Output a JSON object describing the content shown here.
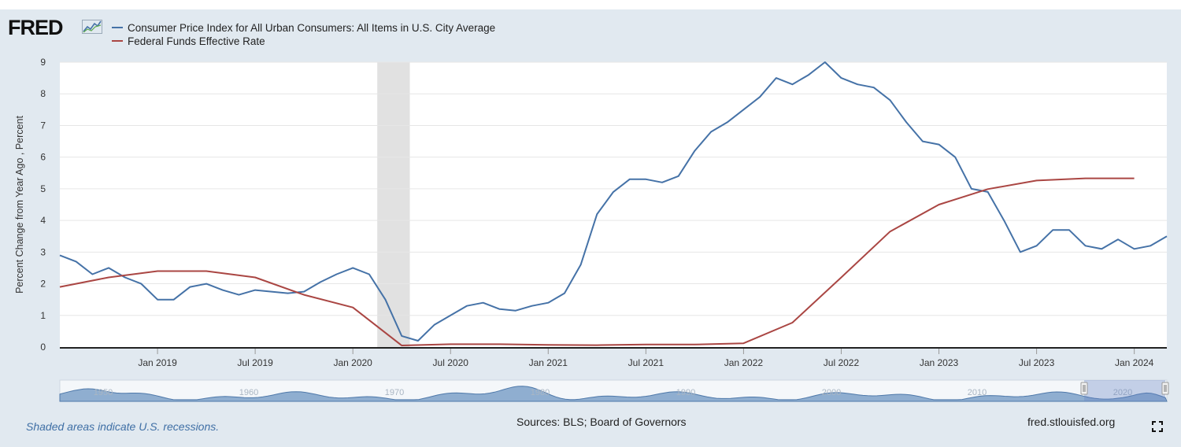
{
  "brand": {
    "logo_text": "FRED"
  },
  "legend": [
    {
      "label": "Consumer Price Index for All Urban Consumers: All Items in U.S. City Average",
      "color": "#4572a7"
    },
    {
      "label": "Federal Funds Effective Rate",
      "color": "#aa4643"
    }
  ],
  "footer": {
    "recession_note": "Shaded areas indicate U.S. recessions.",
    "sources": "Sources: BLS; Board of Governors",
    "site": "fred.stlouisfed.org"
  },
  "chart_data": {
    "type": "line",
    "title": "",
    "xlabel": "",
    "ylabel": "Percent Change from Year Ago , Percent",
    "x_range": [
      "2018-07",
      "2024-03"
    ],
    "ylim": [
      0,
      9
    ],
    "y_ticks": [
      0,
      1,
      2,
      3,
      4,
      5,
      6,
      7,
      8,
      9
    ],
    "x_ticks": [
      {
        "label": "Jan 2019",
        "month": 6
      },
      {
        "label": "Jul 2019",
        "month": 12
      },
      {
        "label": "Jan 2020",
        "month": 18
      },
      {
        "label": "Jul 2020",
        "month": 24
      },
      {
        "label": "Jan 2021",
        "month": 30
      },
      {
        "label": "Jul 2021",
        "month": 36
      },
      {
        "label": "Jan 2022",
        "month": 42
      },
      {
        "label": "Jul 2022",
        "month": 48
      },
      {
        "label": "Jan 2023",
        "month": 54
      },
      {
        "label": "Jul 2023",
        "month": 60
      },
      {
        "label": "Jan 2024",
        "month": 66
      }
    ],
    "recession": {
      "start_month": 19.5,
      "end_month": 21.5
    },
    "navigator_labels": [
      "1950",
      "1960",
      "1970",
      "1980",
      "1990",
      "2000",
      "2010",
      "2020"
    ],
    "series": [
      {
        "name": "Consumer Price Index for All Urban Consumers: All Items in U.S. City Average",
        "color": "#4572a7",
        "start": "2018-07",
        "frequency": "monthly",
        "values": [
          2.9,
          2.7,
          2.3,
          2.5,
          2.2,
          2.0,
          1.5,
          1.5,
          1.9,
          2.0,
          1.8,
          1.65,
          1.8,
          1.75,
          1.7,
          1.75,
          2.05,
          2.3,
          2.5,
          2.3,
          1.5,
          0.35,
          0.2,
          0.7,
          1.0,
          1.3,
          1.4,
          1.2,
          1.15,
          1.3,
          1.4,
          1.7,
          2.6,
          4.2,
          4.9,
          5.3,
          5.3,
          5.2,
          5.4,
          6.2,
          6.8,
          7.1,
          7.5,
          7.9,
          8.5,
          8.3,
          8.6,
          9.0,
          8.5,
          8.3,
          8.2,
          7.8,
          7.1,
          6.5,
          6.4,
          6.0,
          5.0,
          4.9,
          4.0,
          3.0,
          3.2,
          3.7,
          3.7,
          3.2,
          3.1,
          3.4,
          3.1,
          3.2,
          3.5
        ]
      },
      {
        "name": "Federal Funds Effective Rate",
        "color": "#aa4643",
        "start": "2018-07",
        "frequency": "quarterly",
        "values": [
          1.9,
          2.2,
          2.4,
          2.4,
          2.2,
          1.65,
          1.25,
          0.05,
          0.09,
          0.09,
          0.07,
          0.06,
          0.08,
          0.08,
          0.12,
          0.77,
          2.2,
          3.65,
          4.5,
          4.99,
          5.26,
          5.33,
          5.33
        ]
      }
    ]
  }
}
